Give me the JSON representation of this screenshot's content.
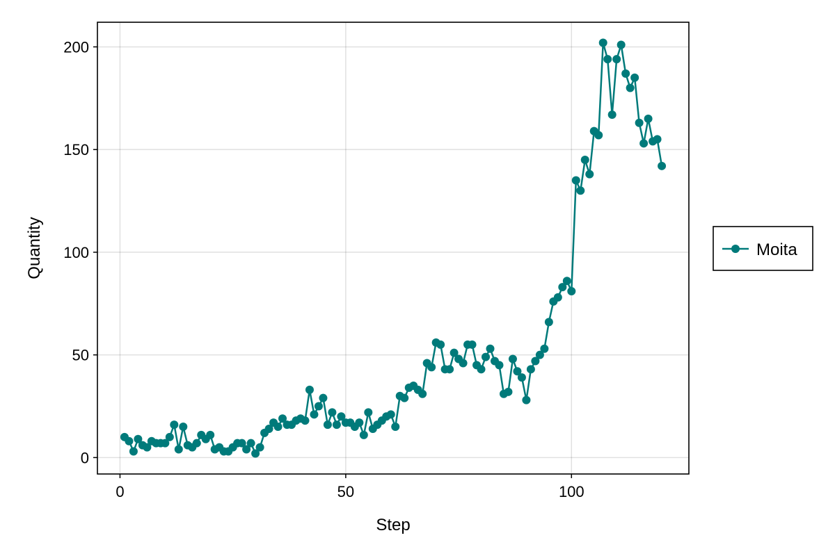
{
  "chart_data": {
    "type": "line",
    "xlabel": "Step",
    "ylabel": "Quantity",
    "xlim": [
      -5,
      126
    ],
    "ylim": [
      -8,
      212
    ],
    "xticks": [
      0,
      50,
      100
    ],
    "yticks": [
      0,
      50,
      100,
      150,
      200
    ],
    "grid": true,
    "legend_position": "right",
    "series": [
      {
        "name": "Moita",
        "color": "#007a7a",
        "marker": "circle",
        "x": [
          1,
          2,
          3,
          4,
          5,
          6,
          7,
          8,
          9,
          10,
          11,
          12,
          13,
          14,
          15,
          16,
          17,
          18,
          19,
          20,
          21,
          22,
          23,
          24,
          25,
          26,
          27,
          28,
          29,
          30,
          31,
          32,
          33,
          34,
          35,
          36,
          37,
          38,
          39,
          40,
          41,
          42,
          43,
          44,
          45,
          46,
          47,
          48,
          49,
          50,
          51,
          52,
          53,
          54,
          55,
          56,
          57,
          58,
          59,
          60,
          61,
          62,
          63,
          64,
          65,
          66,
          67,
          68,
          69,
          70,
          71,
          72,
          73,
          74,
          75,
          76,
          77,
          78,
          79,
          80,
          81,
          82,
          83,
          84,
          85,
          86,
          87,
          88,
          89,
          90,
          91,
          92,
          93,
          94,
          95,
          96,
          97,
          98,
          99,
          100,
          101,
          102,
          103,
          104,
          105,
          106,
          107,
          108,
          109,
          110,
          111,
          112,
          113,
          114,
          115,
          116,
          117,
          118,
          119,
          120
        ],
        "y": [
          10,
          8,
          3,
          9,
          6,
          5,
          8,
          7,
          7,
          7,
          10,
          16,
          4,
          15,
          6,
          5,
          7,
          11,
          9,
          11,
          4,
          5,
          3,
          3,
          5,
          7,
          7,
          4,
          7,
          2,
          5,
          12,
          14,
          17,
          15,
          19,
          16,
          16,
          18,
          19,
          18,
          33,
          21,
          25,
          29,
          16,
          22,
          16,
          20,
          17,
          17,
          15,
          17,
          11,
          22,
          14,
          16,
          18,
          20,
          21,
          15,
          30,
          29,
          34,
          35,
          33,
          31,
          46,
          44,
          56,
          55,
          43,
          43,
          51,
          48,
          46,
          55,
          55,
          45,
          43,
          49,
          53,
          47,
          45,
          31,
          32,
          48,
          42,
          39,
          28,
          43,
          47,
          50,
          53,
          66,
          76,
          78,
          83,
          86,
          81,
          135,
          130,
          145,
          138,
          159,
          157,
          202,
          194,
          167,
          194,
          201,
          187,
          180,
          185,
          163,
          153,
          165,
          154,
          155,
          142
        ]
      }
    ]
  }
}
